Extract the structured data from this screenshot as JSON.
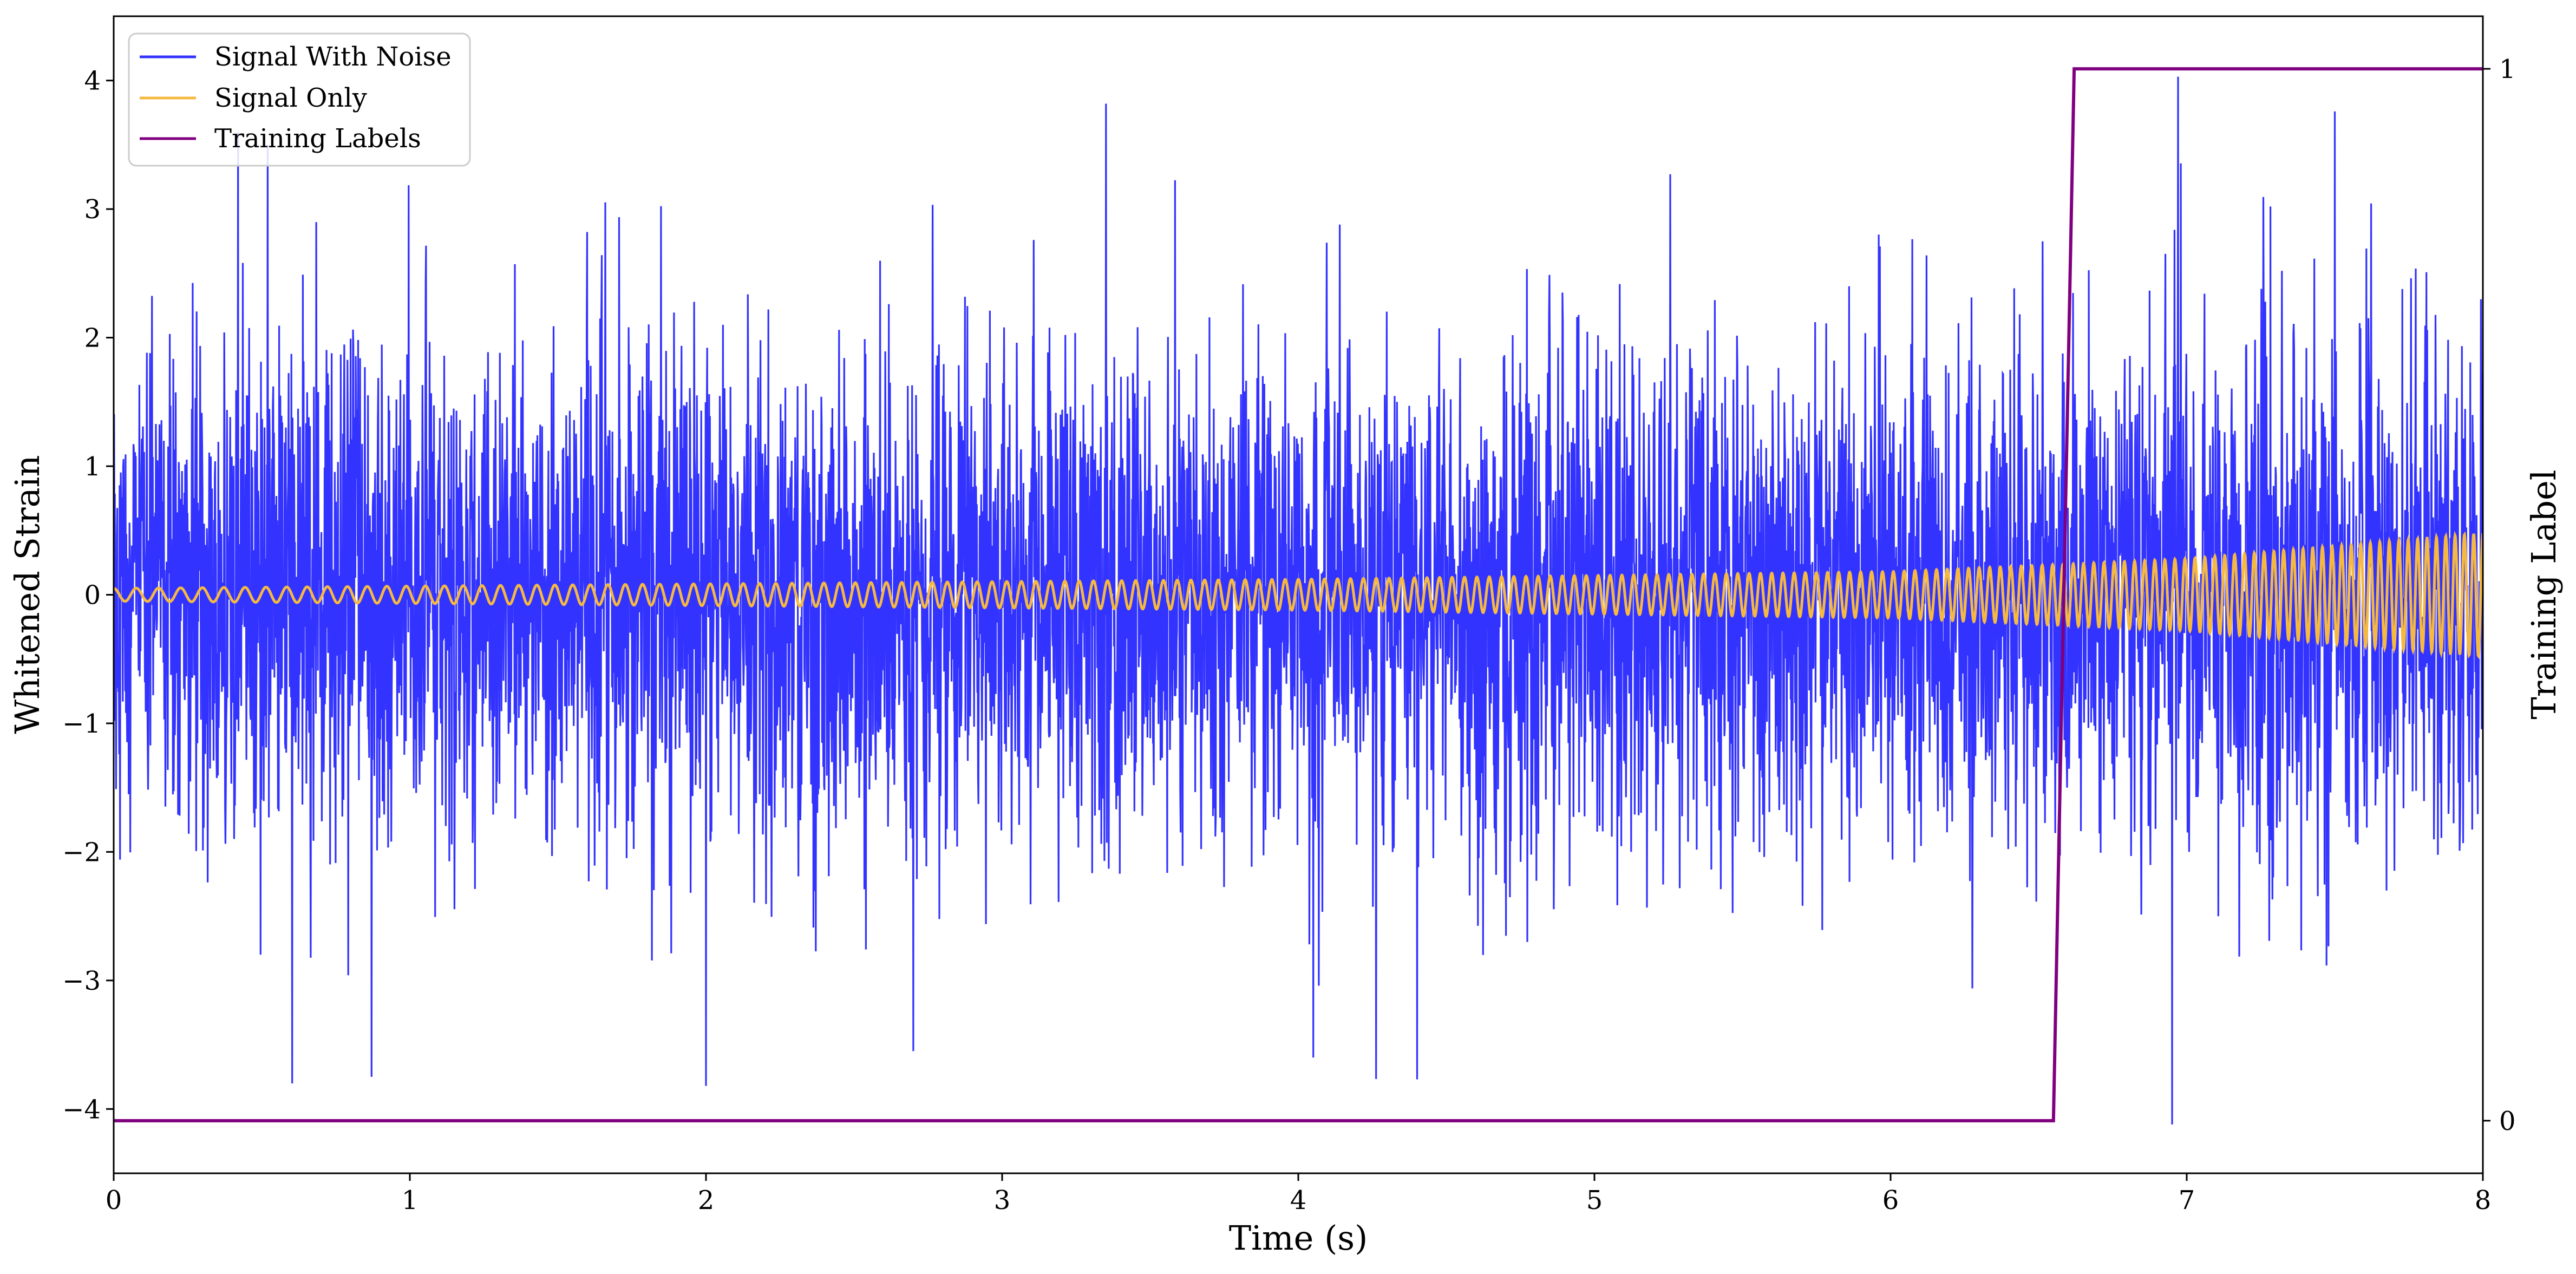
{
  "chart_data": {
    "type": "line",
    "xlabel": "Time (s)",
    "ylabel": "Whitened Strain",
    "ylabel_right": "Training Label",
    "xlim": [
      0,
      8
    ],
    "ylim": [
      -4.5,
      4.5
    ],
    "ylim_right": [
      -0.05,
      1.05
    ],
    "x_ticks": [
      0,
      1,
      2,
      3,
      4,
      5,
      6,
      7,
      8
    ],
    "y_ticks": [
      -4,
      -3,
      -2,
      -1,
      0,
      1,
      2,
      3,
      4
    ],
    "y_right_ticks": [
      0,
      1
    ],
    "grid": false,
    "legend_position": "upper-left",
    "legend": [
      "Signal With Noise",
      "Signal Only",
      "Training Labels"
    ],
    "series": [
      {
        "name": "Signal With Noise",
        "axis": "left",
        "color": "#3333ff",
        "description_stats": {
          "approx_std": 0.95,
          "min": -4.12,
          "max": 4.03
        },
        "notable_extremes": [
          {
            "x": 0.42,
            "y": 3.6
          },
          {
            "x": 0.52,
            "y": 3.5
          },
          {
            "x": 0.87,
            "y": -3.75
          },
          {
            "x": 2.0,
            "y": 3.75
          },
          {
            "x": 2.0,
            "y": -3.82
          },
          {
            "x": 2.7,
            "y": -3.55
          },
          {
            "x": 3.35,
            "y": 3.82
          },
          {
            "x": 4.05,
            "y": -3.6
          },
          {
            "x": 6.95,
            "y": -4.12
          },
          {
            "x": 6.97,
            "y": 4.03
          },
          {
            "x": 7.5,
            "y": 3.76
          }
        ]
      },
      {
        "name": "Signal Only",
        "axis": "left",
        "color": "#f5b942",
        "amplitude": {
          "x": [
            0,
            4,
            6,
            7,
            8
          ],
          "y": [
            0.05,
            0.12,
            0.18,
            0.28,
            0.48
          ]
        },
        "frequency_hz": {
          "x": [
            0,
            8
          ],
          "y": [
            13,
            32
          ]
        }
      },
      {
        "name": "Training Labels",
        "axis": "right",
        "color": "#800080",
        "x": [
          0,
          6.55,
          6.62,
          8
        ],
        "y": [
          0,
          0,
          1,
          1
        ]
      }
    ]
  }
}
